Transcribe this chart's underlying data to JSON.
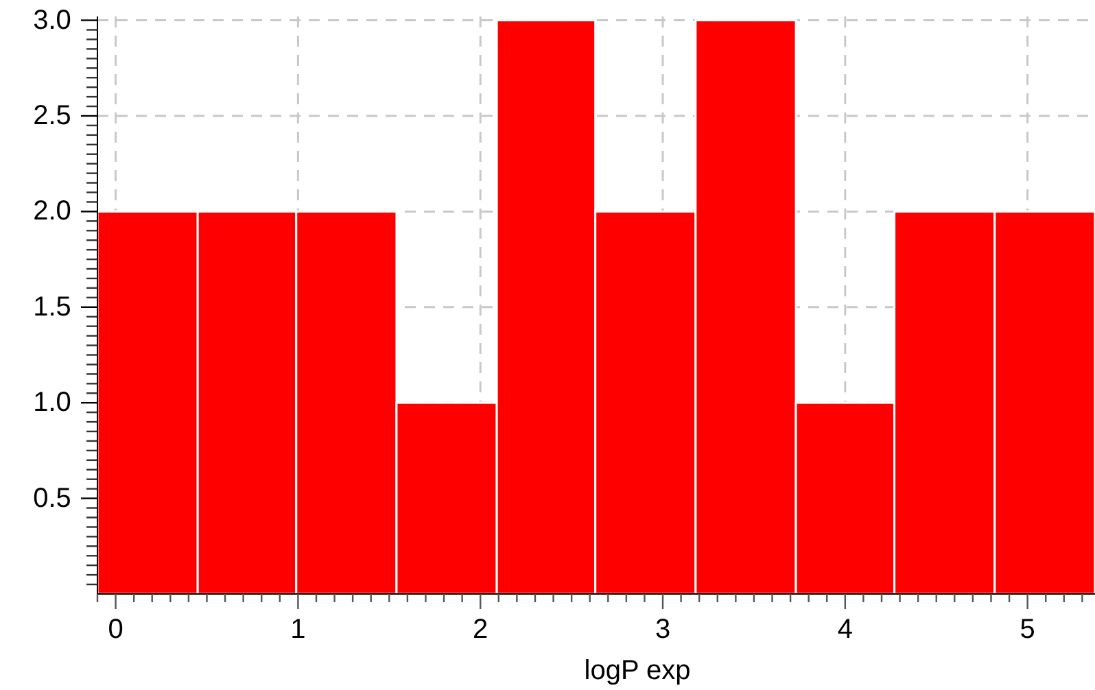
{
  "chart_data": {
    "type": "histogram",
    "xlabel": "logP exp",
    "bins": [
      -0.1,
      0.45,
      0.99,
      1.54,
      2.09,
      2.63,
      3.18,
      3.73,
      4.27,
      4.82,
      5.37
    ],
    "values": [
      2,
      2,
      2,
      1,
      3,
      2,
      3,
      1,
      2,
      2
    ],
    "color": "#ff0000",
    "xlim": [
      -0.1,
      5.37
    ],
    "ylim": [
      0,
      3.02
    ],
    "xticks": [
      {
        "value": -0.1,
        "label": null
      },
      0,
      {
        "value": 0.1,
        "label": null
      },
      {
        "value": 0.2,
        "label": null
      },
      {
        "value": 0.3,
        "label": null
      },
      {
        "value": 0.4,
        "label": null
      },
      {
        "value": 0.5,
        "label": null
      },
      {
        "value": 0.6,
        "label": null
      },
      {
        "value": 0.7,
        "label": null
      },
      {
        "value": 0.8,
        "label": null
      },
      {
        "value": 0.9,
        "label": null
      },
      1,
      {
        "value": 1.1,
        "label": null
      },
      {
        "value": 1.2,
        "label": null
      },
      {
        "value": 1.3,
        "label": null
      },
      {
        "value": 1.4,
        "label": null
      },
      {
        "value": 1.5,
        "label": null
      },
      {
        "value": 1.6,
        "label": null
      },
      {
        "value": 1.7,
        "label": null
      },
      {
        "value": 1.8,
        "label": null
      },
      {
        "value": 1.9,
        "label": null
      },
      2,
      {
        "value": 2.1,
        "label": null
      },
      {
        "value": 2.2,
        "label": null
      },
      {
        "value": 2.3,
        "label": null
      },
      {
        "value": 2.4,
        "label": null
      },
      {
        "value": 2.5,
        "label": null
      },
      {
        "value": 2.6,
        "label": null
      },
      {
        "value": 2.7,
        "label": null
      },
      {
        "value": 2.8,
        "label": null
      },
      {
        "value": 2.9,
        "label": null
      },
      3,
      {
        "value": 3.1,
        "label": null
      },
      {
        "value": 3.2,
        "label": null
      },
      {
        "value": 3.3,
        "label": null
      },
      {
        "value": 3.4,
        "label": null
      },
      {
        "value": 3.5,
        "label": null
      },
      {
        "value": 3.6,
        "label": null
      },
      {
        "value": 3.7,
        "label": null
      },
      {
        "value": 3.8,
        "label": null
      },
      {
        "value": 3.9,
        "label": null
      },
      4,
      {
        "value": 4.1,
        "label": null
      },
      {
        "value": 4.2,
        "label": null
      },
      {
        "value": 4.3,
        "label": null
      },
      {
        "value": 4.4,
        "label": null
      },
      {
        "value": 4.5,
        "label": null
      },
      {
        "value": 4.6,
        "label": null
      },
      {
        "value": 4.7,
        "label": null
      },
      {
        "value": 4.8,
        "label": null
      },
      {
        "value": 4.9,
        "label": null
      },
      5,
      {
        "value": 5.1,
        "label": null
      },
      {
        "value": 5.2,
        "label": null
      },
      {
        "value": 5.3,
        "label": null
      }
    ],
    "yticks": [
      {
        "value": 0.05,
        "label": null
      },
      {
        "value": 0.1,
        "label": null
      },
      {
        "value": 0.15,
        "label": null
      },
      {
        "value": 0.2,
        "label": null
      },
      {
        "value": 0.25,
        "label": null
      },
      {
        "value": 0.3,
        "label": null
      },
      {
        "value": 0.35,
        "label": null
      },
      {
        "value": 0.4,
        "label": null
      },
      {
        "value": 0.45,
        "label": null
      },
      0.5,
      {
        "value": 0.55,
        "label": null
      },
      {
        "value": 0.6,
        "label": null
      },
      {
        "value": 0.65,
        "label": null
      },
      {
        "value": 0.7,
        "label": null
      },
      {
        "value": 0.75,
        "label": null
      },
      {
        "value": 0.8,
        "label": null
      },
      {
        "value": 0.85,
        "label": null
      },
      {
        "value": 0.9,
        "label": null
      },
      {
        "value": 0.95,
        "label": null
      },
      {
        "value": 1,
        "label": "1.0"
      },
      {
        "value": 1.05,
        "label": null
      },
      {
        "value": 1.1,
        "label": null
      },
      {
        "value": 1.15,
        "label": null
      },
      {
        "value": 1.2,
        "label": null
      },
      {
        "value": 1.25,
        "label": null
      },
      {
        "value": 1.3,
        "label": null
      },
      {
        "value": 1.35,
        "label": null
      },
      {
        "value": 1.4,
        "label": null
      },
      {
        "value": 1.45,
        "label": null
      },
      1.5,
      {
        "value": 1.55,
        "label": null
      },
      {
        "value": 1.6,
        "label": null
      },
      {
        "value": 1.65,
        "label": null
      },
      {
        "value": 1.7,
        "label": null
      },
      {
        "value": 1.75,
        "label": null
      },
      {
        "value": 1.8,
        "label": null
      },
      {
        "value": 1.85,
        "label": null
      },
      {
        "value": 1.9,
        "label": null
      },
      {
        "value": 1.95,
        "label": null
      },
      {
        "value": 2,
        "label": "2.0"
      },
      {
        "value": 2.05,
        "label": null
      },
      {
        "value": 2.1,
        "label": null
      },
      {
        "value": 2.15,
        "label": null
      },
      {
        "value": 2.2,
        "label": null
      },
      {
        "value": 2.25,
        "label": null
      },
      {
        "value": 2.3,
        "label": null
      },
      {
        "value": 2.35,
        "label": null
      },
      {
        "value": 2.4,
        "label": null
      },
      {
        "value": 2.45,
        "label": null
      },
      2.5,
      {
        "value": 2.55,
        "label": null
      },
      {
        "value": 2.6,
        "label": null
      },
      {
        "value": 2.65,
        "label": null
      },
      {
        "value": 2.7,
        "label": null
      },
      {
        "value": 2.75,
        "label": null
      },
      {
        "value": 2.8,
        "label": null
      },
      {
        "value": 2.85,
        "label": null
      },
      {
        "value": 2.9,
        "label": null
      },
      {
        "value": 2.95,
        "label": null
      },
      {
        "value": 3,
        "label": "3.0"
      }
    ],
    "grid": true
  }
}
